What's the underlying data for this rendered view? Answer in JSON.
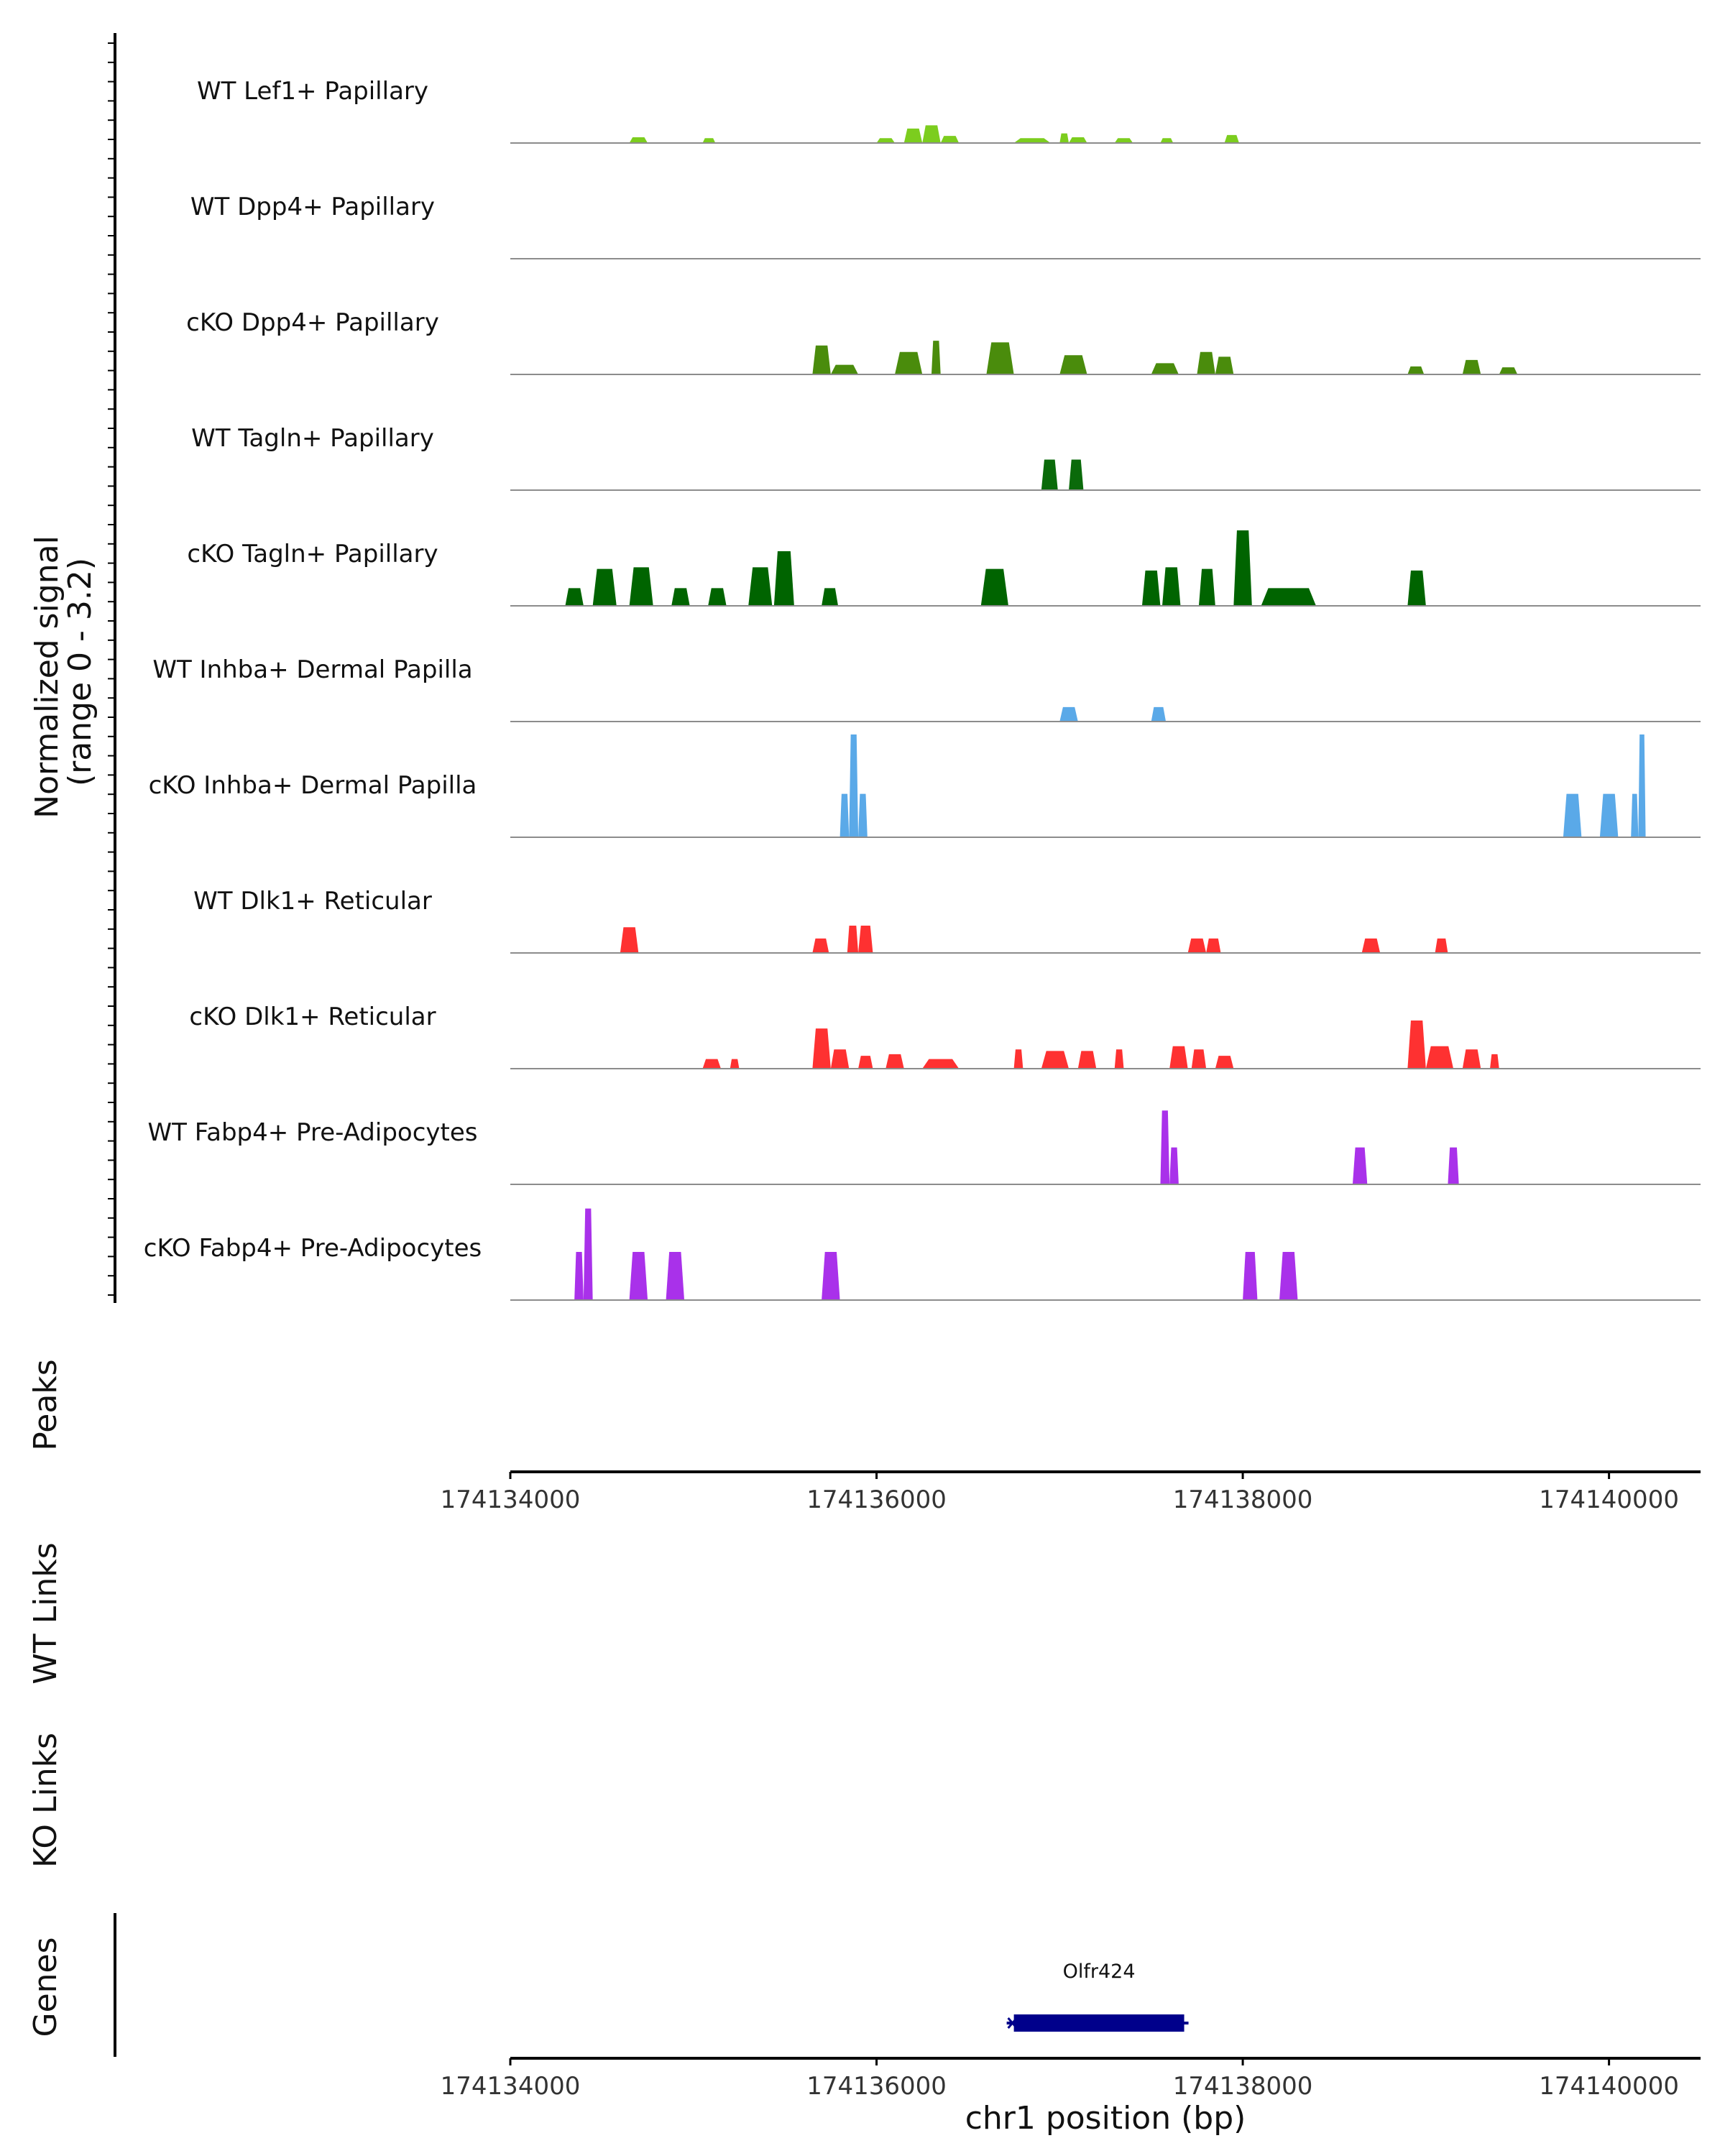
{
  "chart_data": {
    "type": "area",
    "title": "",
    "ylabel": "Normalized signal\n(range 0 - 3.2)",
    "ylabel_lines": [
      "Normalized signal",
      "(range 0 - 3.2)"
    ],
    "ylim": [
      0,
      3.2
    ],
    "xlabel": "chr1 position (bp)",
    "xlim": [
      174134000,
      174140500
    ],
    "xticks": [
      174134000,
      174136000,
      174138000,
      174140000
    ],
    "xtick_labels": [
      "174134000",
      "174136000",
      "174138000",
      "174140000"
    ],
    "track_panels": [
      {
        "name": "Peaks",
        "label": "Peaks"
      },
      {
        "name": "WT Links",
        "label": "WT Links"
      },
      {
        "name": "KO Links",
        "label": "KO Links"
      },
      {
        "name": "Genes",
        "label": "Genes"
      }
    ],
    "genes": [
      {
        "name": "Olfr424",
        "start": 174136750,
        "end": 174137680,
        "strand": "-",
        "color": "#00008b"
      }
    ],
    "series": [
      {
        "name": "WT Lef1+ Papillary",
        "color": "#7ccd1e",
        "peaks": [
          [
            174134650,
            174134750,
            0.18
          ],
          [
            174135050,
            174135120,
            0.15
          ],
          [
            174136000,
            174136100,
            0.15
          ],
          [
            174136150,
            174136250,
            0.45
          ],
          [
            174136250,
            174136350,
            0.55
          ],
          [
            174136350,
            174136450,
            0.22
          ],
          [
            174136750,
            174136950,
            0.15
          ],
          [
            174137000,
            174137050,
            0.3
          ],
          [
            174137050,
            174137150,
            0.18
          ],
          [
            174137300,
            174137400,
            0.15
          ],
          [
            174137550,
            174137620,
            0.15
          ],
          [
            174137900,
            174137980,
            0.25
          ]
        ]
      },
      {
        "name": "WT Dpp4+ Papillary",
        "color": "#5a9e12",
        "peaks": []
      },
      {
        "name": "cKO Dpp4+ Papillary",
        "color": "#4a8c0c",
        "peaks": [
          [
            174135650,
            174135750,
            0.9
          ],
          [
            174135750,
            174135900,
            0.3
          ],
          [
            174136100,
            174136250,
            0.7
          ],
          [
            174136300,
            174136350,
            1.05
          ],
          [
            174136600,
            174136750,
            1.0
          ],
          [
            174137000,
            174137150,
            0.6
          ],
          [
            174137500,
            174137650,
            0.35
          ],
          [
            174137750,
            174137850,
            0.7
          ],
          [
            174137850,
            174137950,
            0.55
          ],
          [
            174138900,
            174138990,
            0.25
          ],
          [
            174139200,
            174139300,
            0.45
          ],
          [
            174139400,
            174139500,
            0.22
          ]
        ]
      },
      {
        "name": "WT Tagln+ Papillary",
        "color": "#0a6a0a",
        "peaks": [
          [
            174136900,
            174136990,
            0.95
          ],
          [
            174137050,
            174137130,
            0.95
          ]
        ]
      },
      {
        "name": "cKO Tagln+ Papillary",
        "color": "#006400",
        "peaks": [
          [
            174134300,
            174134400,
            0.55
          ],
          [
            174134450,
            174134580,
            1.15
          ],
          [
            174134650,
            174134780,
            1.2
          ],
          [
            174134880,
            174134980,
            0.55
          ],
          [
            174135080,
            174135180,
            0.55
          ],
          [
            174135300,
            174135430,
            1.2
          ],
          [
            174135440,
            174135550,
            1.7
          ],
          [
            174135700,
            174135790,
            0.55
          ],
          [
            174136570,
            174136720,
            1.15
          ],
          [
            174137450,
            174137550,
            1.1
          ],
          [
            174137560,
            174137660,
            1.2
          ],
          [
            174137760,
            174137850,
            1.15
          ],
          [
            174137950,
            174138050,
            2.35
          ],
          [
            174138100,
            174138400,
            0.55
          ],
          [
            174138900,
            174139000,
            1.1
          ]
        ]
      },
      {
        "name": "WT Inhba+ Dermal Papilla",
        "color": "#5aa9e8",
        "peaks": [
          [
            174137000,
            174137100,
            0.45
          ],
          [
            174137500,
            174137580,
            0.45
          ]
        ]
      },
      {
        "name": "cKO Inhba+ Dermal Papilla",
        "color": "#5aa9e8",
        "peaks": [
          [
            174135800,
            174135850,
            1.35
          ],
          [
            174135850,
            174135900,
            3.2
          ],
          [
            174135900,
            174135950,
            1.35
          ],
          [
            174139750,
            174139850,
            1.35
          ],
          [
            174139950,
            174140050,
            1.35
          ],
          [
            174140120,
            174140160,
            1.35
          ],
          [
            174140160,
            174140200,
            3.2
          ]
        ]
      },
      {
        "name": "WT Dlk1+ Reticular",
        "color": "#fe3131",
        "peaks": [
          [
            174134600,
            174134700,
            0.8
          ],
          [
            174135650,
            174135740,
            0.45
          ],
          [
            174135840,
            174135900,
            0.85
          ],
          [
            174135900,
            174135980,
            0.85
          ],
          [
            174137700,
            174137800,
            0.45
          ],
          [
            174137800,
            174137880,
            0.45
          ],
          [
            174138650,
            174138750,
            0.45
          ],
          [
            174139050,
            174139120,
            0.45
          ]
        ]
      },
      {
        "name": "cKO Dlk1+ Reticular",
        "color": "#fe3131",
        "peaks": [
          [
            174135050,
            174135150,
            0.3
          ],
          [
            174135200,
            174135250,
            0.3
          ],
          [
            174135650,
            174135750,
            1.25
          ],
          [
            174135750,
            174135850,
            0.6
          ],
          [
            174135900,
            174135980,
            0.4
          ],
          [
            174136050,
            174136150,
            0.45
          ],
          [
            174136250,
            174136450,
            0.3
          ],
          [
            174136750,
            174136800,
            0.6
          ],
          [
            174136900,
            174137050,
            0.55
          ],
          [
            174137100,
            174137200,
            0.55
          ],
          [
            174137300,
            174137350,
            0.6
          ],
          [
            174137600,
            174137700,
            0.7
          ],
          [
            174137720,
            174137800,
            0.6
          ],
          [
            174137850,
            174137950,
            0.4
          ],
          [
            174138900,
            174139000,
            1.5
          ],
          [
            174139000,
            174139150,
            0.7
          ],
          [
            174139200,
            174139300,
            0.6
          ],
          [
            174139350,
            174139400,
            0.45
          ]
        ]
      },
      {
        "name": "WT Fabp4+ Pre-Adipocytes",
        "color": "#a931ea",
        "peaks": [
          [
            174137550,
            174137600,
            2.3
          ],
          [
            174137600,
            174137650,
            1.15
          ],
          [
            174138600,
            174138680,
            1.15
          ],
          [
            174139120,
            174139180,
            1.15
          ]
        ]
      },
      {
        "name": "cKO Fabp4+ Pre-Adipocytes",
        "color": "#a931ea",
        "peaks": [
          [
            174134350,
            174134400,
            1.5
          ],
          [
            174134400,
            174134450,
            2.85
          ],
          [
            174134650,
            174134750,
            1.5
          ],
          [
            174134850,
            174134950,
            1.5
          ],
          [
            174135700,
            174135800,
            1.5
          ],
          [
            174138000,
            174138080,
            1.5
          ],
          [
            174138200,
            174138300,
            1.5
          ]
        ]
      }
    ]
  }
}
